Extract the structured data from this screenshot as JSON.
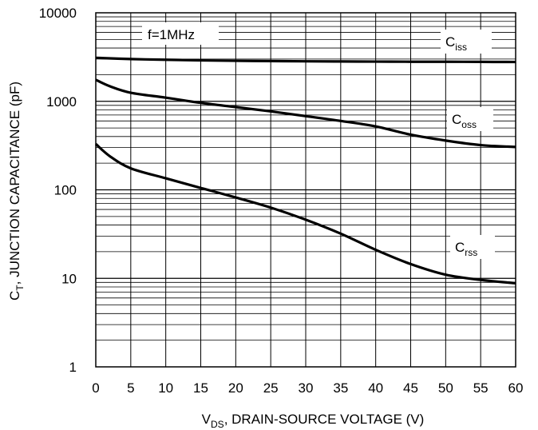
{
  "chart_data": {
    "type": "line",
    "xlabel": {
      "main": "V",
      "sub": "DS",
      "rest": ", DRAIN-SOURCE VOLTAGE (V)"
    },
    "ylabel": {
      "main": "C",
      "sub": "T",
      "rest": ", JUNCTION CAPACITANCE (pF)"
    },
    "xlim": [
      0,
      60
    ],
    "ylim": [
      1,
      10000
    ],
    "yscale": "log",
    "grid": true,
    "x_ticks": [
      0,
      5,
      10,
      15,
      20,
      25,
      30,
      35,
      40,
      45,
      50,
      55,
      60
    ],
    "x_tick_labels": [
      "0",
      "5",
      "10",
      "15",
      "20",
      "25",
      "30",
      "35",
      "40",
      "45",
      "50",
      "55",
      "60"
    ],
    "y_ticks": [
      1,
      10,
      100,
      1000,
      10000
    ],
    "y_tick_labels": [
      "1",
      "10",
      "100",
      "1000",
      "10000"
    ],
    "annotation": "f=1MHz",
    "series": [
      {
        "id": "ciss",
        "name": "C",
        "name_sub": "iss",
        "x": [
          0,
          5,
          10,
          15,
          20,
          25,
          30,
          35,
          40,
          45,
          50,
          55,
          60
        ],
        "values": [
          3100,
          3000,
          2950,
          2900,
          2870,
          2850,
          2830,
          2820,
          2810,
          2800,
          2800,
          2790,
          2780
        ]
      },
      {
        "id": "coss",
        "name": "C",
        "name_sub": "oss",
        "x": [
          0,
          2,
          5,
          10,
          15,
          20,
          25,
          30,
          35,
          40,
          45,
          50,
          55,
          60
        ],
        "values": [
          1750,
          1480,
          1250,
          1100,
          960,
          860,
          770,
          680,
          600,
          520,
          420,
          360,
          320,
          305
        ]
      },
      {
        "id": "crss",
        "name": "C",
        "name_sub": "rss",
        "x": [
          0,
          2,
          5,
          10,
          15,
          20,
          25,
          30,
          35,
          40,
          45,
          50,
          55,
          60
        ],
        "values": [
          330,
          240,
          175,
          135,
          105,
          82,
          63,
          46,
          32,
          21,
          14.5,
          11,
          9.6,
          8.8
        ]
      }
    ]
  }
}
